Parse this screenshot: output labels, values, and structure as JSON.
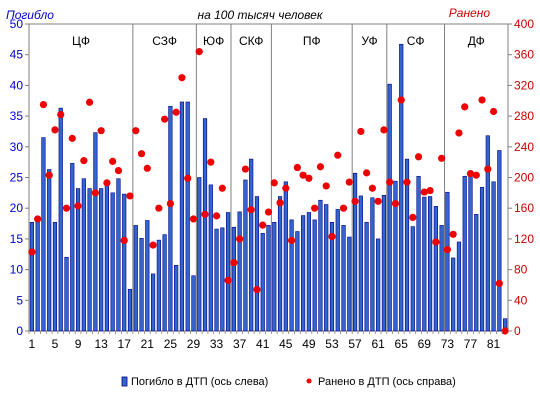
{
  "chart_data": {
    "type": "bar",
    "title": "на 100 тысяч человек",
    "left_axis_title": "Погибло",
    "right_axis_title": "Ранено",
    "left_ylim": [
      0,
      50
    ],
    "left_ticks": [
      0,
      5,
      10,
      15,
      20,
      25,
      30,
      35,
      40,
      45,
      50
    ],
    "right_ylim": [
      0,
      400
    ],
    "right_ticks": [
      0,
      40,
      80,
      120,
      160,
      200,
      240,
      280,
      320,
      360,
      400
    ],
    "x_ticks": [
      "1",
      "5",
      "9",
      "13",
      "17",
      "21",
      "25",
      "29",
      "33",
      "37",
      "41",
      "45",
      "49",
      "53",
      "57",
      "61",
      "65",
      "69",
      "73",
      "77",
      "81"
    ],
    "grid": false,
    "legend_position": "bottom",
    "colors": {
      "bar": "#3366cc",
      "bar_stroke": "#00008b",
      "dot": "#ee0000",
      "left_axis": "#0000cc",
      "right_axis": "#cc0000"
    },
    "regions": [
      {
        "label": "ЦФ",
        "start": 1,
        "end": 18
      },
      {
        "label": "СЗФ",
        "start": 19,
        "end": 29
      },
      {
        "label": "ЮФ",
        "start": 30,
        "end": 35
      },
      {
        "label": "СКФ",
        "start": 36,
        "end": 42
      },
      {
        "label": "ПФ",
        "start": 43,
        "end": 56
      },
      {
        "label": "УФ",
        "start": 57,
        "end": 62
      },
      {
        "label": "СФ",
        "start": 63,
        "end": 72
      },
      {
        "label": "ДФ",
        "start": 73,
        "end": 83
      }
    ],
    "series": [
      {
        "name": "Погибло  в ДТП (ось слева)",
        "axis": "left",
        "kind": "bar",
        "values": [
          17.7,
          18.5,
          31.5,
          26.3,
          17.7,
          36.3,
          12.0,
          27.3,
          23.2,
          24.8,
          23.2,
          32.3,
          23.2,
          24.2,
          22.5,
          24.8,
          22.3,
          6.8,
          17.2,
          15.1,
          18.0,
          9.3,
          14.8,
          15.7,
          36.6,
          10.7,
          37.3,
          37.3,
          9.0,
          25.0,
          34.6,
          23.8,
          16.6,
          16.8,
          19.3,
          16.9,
          19.4,
          24.6,
          28.0,
          21.9,
          15.9,
          17.2,
          17.7,
          21.9,
          24.3,
          18.1,
          16.2,
          18.8,
          19.3,
          18.1,
          21.3,
          20.6,
          17.7,
          19.8,
          17.2,
          15.3,
          25.7,
          22.0,
          17.7,
          21.7,
          15.0,
          22.1,
          40.2,
          24.4,
          46.7,
          28.0,
          17.0,
          25.2,
          21.8,
          21.9,
          20.3,
          17.2,
          22.6,
          11.9,
          14.5,
          25.2,
          25.6,
          19.0,
          23.4,
          31.8,
          24.3,
          29.4,
          2.0
        ]
      },
      {
        "name": "Ранено  в ДТП  (ось справа)",
        "axis": "right",
        "kind": "dot",
        "values": [
          103,
          146,
          295,
          203,
          262,
          282,
          160,
          251,
          163,
          222,
          298,
          180,
          261,
          193,
          221,
          209,
          118,
          176,
          261,
          231,
          212,
          112,
          160,
          276,
          166,
          285,
          330,
          199,
          146,
          364,
          152,
          220,
          150,
          186,
          66,
          89,
          120,
          211,
          158,
          54,
          138,
          155,
          193,
          167,
          186,
          118,
          213,
          203,
          199,
          160,
          214,
          189,
          123,
          229,
          160,
          194,
          169,
          260,
          206,
          186,
          169,
          262,
          194,
          166,
          301,
          194,
          148,
          227,
          181,
          183,
          116,
          225,
          106,
          126,
          258,
          292,
          205,
          203,
          301,
          211,
          286,
          62,
          0
        ]
      }
    ]
  }
}
